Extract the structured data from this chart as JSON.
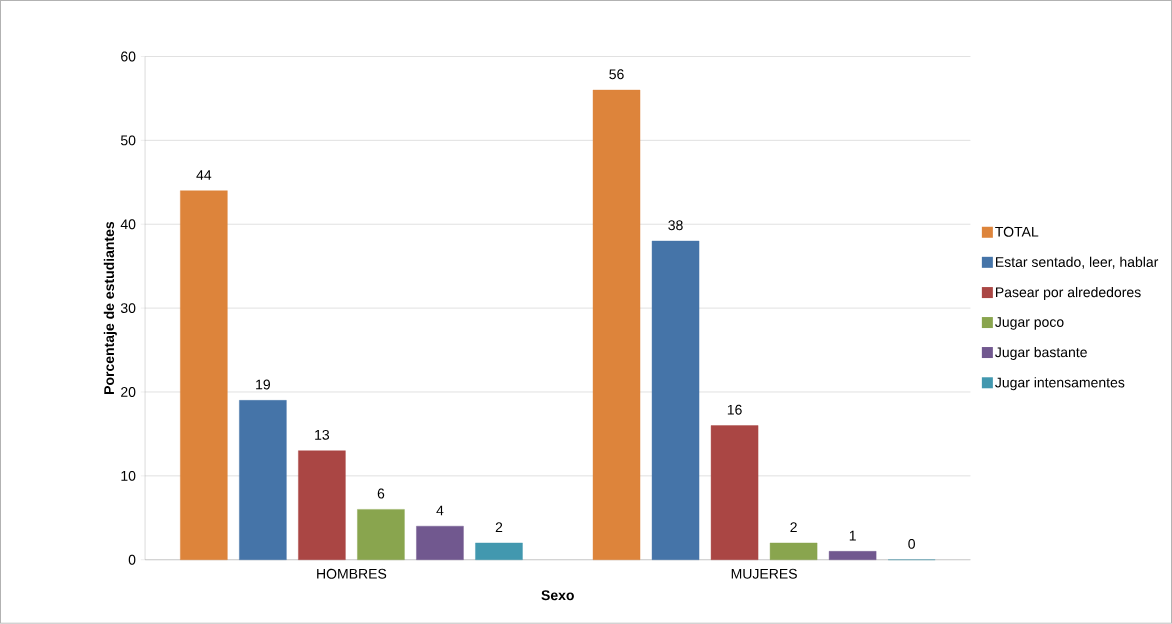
{
  "chart_data": {
    "type": "bar",
    "xlabel": "Sexo",
    "ylabel": "Porcentaje de estudiantes",
    "categories": [
      "HOMBRES",
      "MUJERES"
    ],
    "series": [
      {
        "name": "TOTAL",
        "color": "#dd843b",
        "values": [
          44,
          56
        ]
      },
      {
        "name": "Estar sentado, leer, hablar",
        "color": "#4574a8",
        "values": [
          19,
          38
        ]
      },
      {
        "name": "Pasear por alrededores",
        "color": "#aa4644",
        "values": [
          13,
          16
        ]
      },
      {
        "name": "Jugar poco",
        "color": "#89a54e",
        "values": [
          6,
          2
        ]
      },
      {
        "name": "Jugar bastante",
        "color": "#71588f",
        "values": [
          4,
          1
        ]
      },
      {
        "name": "Jugar intensamentes",
        "color": "#4298af",
        "values": [
          2,
          0
        ]
      }
    ],
    "ylim": [
      0,
      60
    ],
    "yticks": [
      0,
      10,
      20,
      30,
      40,
      50,
      60
    ],
    "grid": "y",
    "legend": "right",
    "data_labels": true
  }
}
